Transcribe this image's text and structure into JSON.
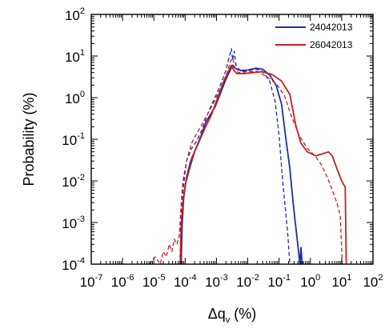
{
  "chart_data": {
    "type": "line",
    "title": "",
    "xlabel": {
      "prefix": "Δq",
      "sub": "v",
      "suffix": " (%)"
    },
    "ylabel": "Probability (%)",
    "xscale": "log",
    "yscale": "log",
    "xlim": [
      1e-07,
      100
    ],
    "ylim": [
      0.0001,
      100
    ],
    "x_tick_exponents": [
      -7,
      -6,
      -5,
      -4,
      -3,
      -2,
      -1,
      0,
      1,
      2
    ],
    "y_tick_exponents": [
      -4,
      -3,
      -2,
      -1,
      0,
      1,
      2
    ],
    "legend_position": "top-right",
    "grid": false,
    "series": [
      {
        "name": "24042013",
        "color": "#1f2bb0",
        "style": "solid",
        "points": [
          [
            7.5e-05,
            0.0001
          ],
          [
            8e-05,
            0.0008
          ],
          [
            9e-05,
            0.004
          ],
          [
            0.00011,
            0.012
          ],
          [
            0.00015,
            0.03
          ],
          [
            0.00022,
            0.06
          ],
          [
            0.00032,
            0.12
          ],
          [
            0.00045,
            0.25
          ],
          [
            0.00065,
            0.4
          ],
          [
            0.0009,
            0.6
          ],
          [
            0.0013,
            1.2
          ],
          [
            0.0019,
            2.5
          ],
          [
            0.0026,
            4.2
          ],
          [
            0.0033,
            6.0
          ],
          [
            0.004,
            5.0
          ],
          [
            0.006,
            4.5
          ],
          [
            0.01,
            4.6
          ],
          [
            0.018,
            5.1
          ],
          [
            0.03,
            4.8
          ],
          [
            0.05,
            3.5
          ],
          [
            0.08,
            2.0
          ],
          [
            0.12,
            0.7
          ],
          [
            0.16,
            0.12
          ],
          [
            0.22,
            0.02
          ],
          [
            0.28,
            0.003
          ],
          [
            0.33,
            0.001
          ],
          [
            0.38,
            0.0004
          ],
          [
            0.42,
            0.0002
          ],
          [
            0.46,
            0.0001
          ],
          [
            0.5,
            0.00025
          ],
          [
            0.55,
            0.0001
          ]
        ]
      },
      {
        "name": "24042013",
        "color": "#1f2bb0",
        "style": "dashed",
        "points": [
          [
            6.8e-05,
            0.0001
          ],
          [
            7.2e-05,
            0.0008
          ],
          [
            8.5e-05,
            0.006
          ],
          [
            0.00011,
            0.03
          ],
          [
            0.00016,
            0.06
          ],
          [
            0.00023,
            0.09
          ],
          [
            0.00032,
            0.15
          ],
          [
            0.00045,
            0.3
          ],
          [
            0.00065,
            0.6
          ],
          [
            0.001,
            1.2
          ],
          [
            0.0015,
            2.5
          ],
          [
            0.002,
            4.5
          ],
          [
            0.0025,
            9.0
          ],
          [
            0.003,
            15.0
          ],
          [
            0.0033,
            8.0
          ],
          [
            0.0037,
            13.0
          ],
          [
            0.0042,
            6.0
          ],
          [
            0.006,
            4.2
          ],
          [
            0.01,
            4.4
          ],
          [
            0.018,
            4.9
          ],
          [
            0.03,
            4.2
          ],
          [
            0.05,
            2.5
          ],
          [
            0.075,
            0.8
          ],
          [
            0.1,
            0.12
          ],
          [
            0.13,
            0.01
          ],
          [
            0.16,
            0.002
          ],
          [
            0.19,
            0.0005
          ],
          [
            0.22,
            0.0001
          ]
        ]
      },
      {
        "name": "26042013",
        "color": "#c81e1e",
        "style": "solid",
        "points": [
          [
            7e-05,
            0.0001
          ],
          [
            7.5e-05,
            0.0008
          ],
          [
            8.5e-05,
            0.003
          ],
          [
            0.0001,
            0.008
          ],
          [
            0.00014,
            0.02
          ],
          [
            0.0002,
            0.05
          ],
          [
            0.0003,
            0.1
          ],
          [
            0.00045,
            0.2
          ],
          [
            0.0007,
            0.4
          ],
          [
            0.0011,
            1.0
          ],
          [
            0.0016,
            2.2
          ],
          [
            0.0023,
            4.0
          ],
          [
            0.003,
            6.0
          ],
          [
            0.0036,
            4.5
          ],
          [
            0.0045,
            3.8
          ],
          [
            0.008,
            3.8
          ],
          [
            0.015,
            4.0
          ],
          [
            0.03,
            4.2
          ],
          [
            0.06,
            3.6
          ],
          [
            0.12,
            2.5
          ],
          [
            0.22,
            1.2
          ],
          [
            0.35,
            0.2
          ],
          [
            0.5,
            0.08
          ],
          [
            0.8,
            0.05
          ],
          [
            1.5,
            0.04
          ],
          [
            2.5,
            0.045
          ],
          [
            3.8,
            0.05
          ],
          [
            5.0,
            0.04
          ],
          [
            7.0,
            0.02
          ],
          [
            10.0,
            0.01
          ],
          [
            13.0,
            0.007
          ],
          [
            14.0,
            0.0001
          ]
        ]
      },
      {
        "name": "26042013",
        "color": "#c81e1e",
        "style": "dashed",
        "points": [
          [
            7e-06,
            0.0001
          ],
          [
            1.1e-05,
            0.00015
          ],
          [
            1.6e-05,
            0.0001
          ],
          [
            2e-05,
            0.0002
          ],
          [
            2.5e-05,
            0.00015
          ],
          [
            3.1e-05,
            0.0003
          ],
          [
            3.8e-05,
            0.0002
          ],
          [
            4.5e-05,
            0.0004
          ],
          [
            5.5e-05,
            0.0003
          ],
          [
            6.5e-05,
            0.0005
          ],
          [
            7.5e-05,
            0.003
          ],
          [
            8.5e-05,
            0.01
          ],
          [
            0.00011,
            0.03
          ],
          [
            0.00016,
            0.08
          ],
          [
            0.00025,
            0.15
          ],
          [
            0.0004,
            0.28
          ],
          [
            0.00065,
            0.55
          ],
          [
            0.001,
            1.0
          ],
          [
            0.0015,
            2.0
          ],
          [
            0.0022,
            4.0
          ],
          [
            0.0028,
            7.5
          ],
          [
            0.0033,
            9.0
          ],
          [
            0.0038,
            5.5
          ],
          [
            0.005,
            4.0
          ],
          [
            0.01,
            4.2
          ],
          [
            0.02,
            4.3
          ],
          [
            0.04,
            3.2
          ],
          [
            0.08,
            2.2
          ],
          [
            0.15,
            1.1
          ],
          [
            0.25,
            0.35
          ],
          [
            0.45,
            0.12
          ],
          [
            0.8,
            0.06
          ],
          [
            1.4,
            0.04
          ],
          [
            2.2,
            0.025
          ],
          [
            3.5,
            0.012
          ],
          [
            5.0,
            0.006
          ],
          [
            7.0,
            0.003
          ],
          [
            9.0,
            0.0015
          ],
          [
            10.5,
            0.0001
          ]
        ]
      }
    ],
    "legend": [
      {
        "name": "24042013",
        "color": "#1f2bb0"
      },
      {
        "name": "26042013",
        "color": "#c81e1e"
      }
    ]
  }
}
